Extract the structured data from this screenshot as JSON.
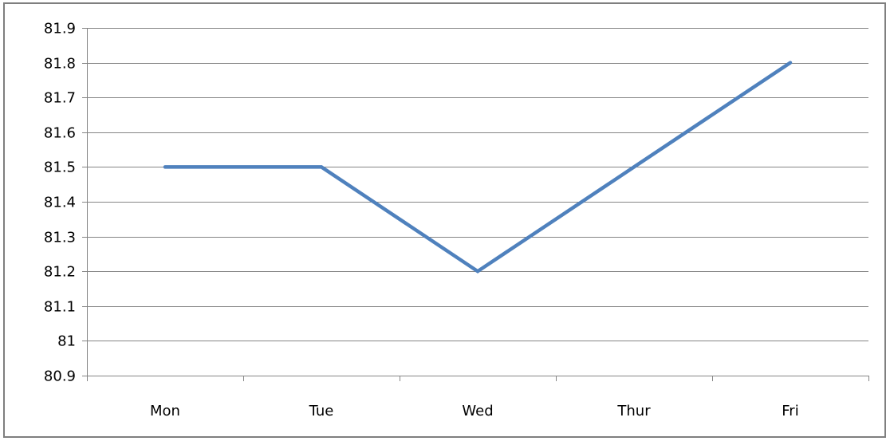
{
  "chart_data": {
    "type": "line",
    "title": "",
    "xlabel": "",
    "ylabel": "",
    "categories": [
      "Mon",
      "Tue",
      "Wed",
      "Thur",
      "Fri"
    ],
    "series": [
      {
        "values": [
          81.5,
          81.5,
          81.2,
          81.5,
          81.8
        ],
        "color": "#4f81bd"
      }
    ],
    "ylim": [
      80.9,
      81.9
    ],
    "y_ticks": [
      "81.9",
      "81.8",
      "81.7",
      "81.6",
      "81.5",
      "81.4",
      "81.3",
      "81.2",
      "81.1",
      "81",
      "80.9"
    ],
    "grid": true,
    "legend": "none",
    "colors": {
      "gridline": "#868686",
      "axis": "#868686",
      "frame": "#7f7f7f"
    }
  }
}
